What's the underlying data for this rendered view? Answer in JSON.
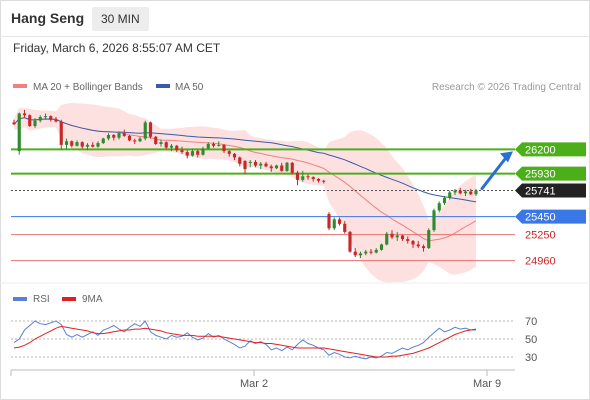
{
  "header": {
    "title": "Hang Seng",
    "timeframe": "30 MIN",
    "datetime": "Friday, March 6, 2026 8:55:07 AM CET"
  },
  "legend": {
    "ma20": "MA 20 + Bollinger Bands",
    "ma50": "MA 50",
    "rsi": "RSI",
    "ma9": "9MA"
  },
  "copyright": "Research © 2026 Trading Central",
  "colors": {
    "candle_up": "#2e8b2e",
    "candle_down": "#c62828",
    "ma20": "#f08080",
    "ma50": "#3a5ca8",
    "bollinger_fill": "#fde0e0",
    "resistance": "#4caf1a",
    "support_blue": "#3b78e7",
    "support_red": "#e57373",
    "rsi": "#5b7fd6",
    "rsi_ma": "#e02020",
    "arrow": "#2a6fd6"
  },
  "chart_data": [
    {
      "type": "candlestick",
      "x_ticks": [
        "Mar 2",
        "Mar 9"
      ],
      "price_levels": [
        {
          "value": 26200,
          "label": "26200",
          "kind": "resistance"
        },
        {
          "value": 25930,
          "label": "25930",
          "kind": "resistance"
        },
        {
          "value": 25741,
          "label": "25741",
          "kind": "last"
        },
        {
          "value": 25450,
          "label": "25450",
          "kind": "support-pivot"
        },
        {
          "value": 25250,
          "label": "25250",
          "kind": "support"
        },
        {
          "value": 24960,
          "label": "24960",
          "kind": "support"
        }
      ],
      "forecast": "up",
      "candles": [
        [
          26500,
          26530,
          26470,
          26480
        ],
        [
          26180,
          26610,
          26140,
          26600
        ],
        [
          26600,
          26640,
          26560,
          26580
        ],
        [
          26580,
          26590,
          26450,
          26460
        ],
        [
          26460,
          26550,
          26440,
          26520
        ],
        [
          26520,
          26580,
          26500,
          26560
        ],
        [
          26560,
          26600,
          26530,
          26570
        ],
        [
          26570,
          26580,
          26510,
          26530
        ],
        [
          26530,
          26560,
          26500,
          26510
        ],
        [
          26510,
          26530,
          26200,
          26250
        ],
        [
          26250,
          26320,
          26200,
          26290
        ],
        [
          26290,
          26300,
          26220,
          26240
        ],
        [
          26240,
          26300,
          26230,
          26280
        ],
        [
          26280,
          26290,
          26210,
          26230
        ],
        [
          26230,
          26270,
          26190,
          26250
        ],
        [
          26250,
          26280,
          26220,
          26230
        ],
        [
          26230,
          26290,
          26220,
          26270
        ],
        [
          26270,
          26330,
          26260,
          26320
        ],
        [
          26320,
          26380,
          26300,
          26360
        ],
        [
          26360,
          26370,
          26300,
          26330
        ],
        [
          26330,
          26400,
          26310,
          26380
        ],
        [
          26380,
          26420,
          26340,
          26350
        ],
        [
          26350,
          26360,
          26290,
          26300
        ],
        [
          26300,
          26320,
          26260,
          26290
        ],
        [
          26290,
          26340,
          26280,
          26320
        ],
        [
          26320,
          26520,
          26300,
          26500
        ],
        [
          26500,
          26510,
          26320,
          26340
        ],
        [
          26340,
          26350,
          26250,
          26260
        ],
        [
          26260,
          26310,
          26230,
          26280
        ],
        [
          26280,
          26290,
          26200,
          26220
        ],
        [
          26220,
          26260,
          26180,
          26240
        ],
        [
          26240,
          26250,
          26170,
          26190
        ],
        [
          26190,
          26230,
          26150,
          26170
        ],
        [
          26170,
          26190,
          26100,
          26130
        ],
        [
          26130,
          26210,
          26120,
          26180
        ],
        [
          26180,
          26200,
          26110,
          26140
        ],
        [
          26140,
          26230,
          26130,
          26210
        ],
        [
          26210,
          26280,
          26200,
          26260
        ],
        [
          26260,
          26280,
          26220,
          26240
        ],
        [
          26240,
          26290,
          26230,
          26250
        ],
        [
          26250,
          26260,
          26160,
          26180
        ],
        [
          26180,
          26190,
          26120,
          26150
        ],
        [
          26150,
          26160,
          26080,
          26110
        ],
        [
          26110,
          26120,
          26010,
          26040
        ],
        [
          26070,
          26080,
          25920,
          25980
        ],
        [
          26050,
          26080,
          26000,
          26060
        ],
        [
          26060,
          26080,
          26000,
          26020
        ],
        [
          26020,
          26060,
          25980,
          26040
        ],
        [
          26040,
          26060,
          26000,
          26010
        ],
        [
          26010,
          26030,
          25950,
          25990
        ],
        [
          25990,
          26030,
          25980,
          26020
        ],
        [
          26020,
          26050,
          25950,
          25960
        ],
        [
          25960,
          26060,
          25950,
          26050
        ],
        [
          26050,
          26060,
          25920,
          25940
        ],
        [
          25940,
          25960,
          25800,
          25860
        ],
        [
          25860,
          25960,
          25840,
          25900
        ],
        [
          25900,
          25920,
          25860,
          25890
        ],
        [
          25890,
          25900,
          25840,
          25870
        ],
        [
          25870,
          25880,
          25830,
          25850
        ],
        [
          25850,
          25860,
          25820,
          25840
        ],
        [
          25480,
          25500,
          25300,
          25320
        ],
        [
          25320,
          25440,
          25300,
          25420
        ],
        [
          25420,
          25440,
          25350,
          25370
        ],
        [
          25370,
          25400,
          25260,
          25280
        ],
        [
          25280,
          25290,
          25050,
          25060
        ],
        [
          25060,
          25100,
          25000,
          25020
        ],
        [
          25020,
          25060,
          24990,
          25040
        ],
        [
          25040,
          25080,
          25020,
          25060
        ],
        [
          25060,
          25090,
          25030,
          25050
        ],
        [
          25050,
          25100,
          25040,
          25080
        ],
        [
          25080,
          25150,
          25070,
          25140
        ],
        [
          25140,
          25280,
          25130,
          25260
        ],
        [
          25260,
          25300,
          25200,
          25220
        ],
        [
          25220,
          25280,
          25180,
          25240
        ],
        [
          25240,
          25250,
          25180,
          25200
        ],
        [
          25200,
          25230,
          25150,
          25180
        ],
        [
          25180,
          25190,
          25100,
          25140
        ],
        [
          25140,
          25180,
          25100,
          25120
        ],
        [
          25120,
          25140,
          25060,
          25100
        ],
        [
          25100,
          25320,
          25090,
          25300
        ],
        [
          25300,
          25540,
          25280,
          25520
        ],
        [
          25520,
          25620,
          25500,
          25600
        ],
        [
          25600,
          25680,
          25580,
          25660
        ],
        [
          25660,
          25740,
          25640,
          25720
        ],
        [
          25720,
          25760,
          25690,
          25740
        ],
        [
          25740,
          25770,
          25700,
          25710
        ],
        [
          25710,
          25750,
          25680,
          25730
        ],
        [
          25730,
          25760,
          25690,
          25700
        ],
        [
          25700,
          25760,
          25680,
          25741
        ]
      ]
    },
    {
      "type": "line",
      "name": "RSI",
      "yticks": [
        70,
        50,
        30
      ],
      "ylim": [
        20,
        80
      ],
      "series": [
        {
          "name": "RSI",
          "values": [
            46,
            50,
            60,
            65,
            70,
            67,
            66,
            68,
            70,
            66,
            55,
            52,
            55,
            52,
            55,
            58,
            54,
            60,
            62,
            65,
            61,
            58,
            63,
            67,
            64,
            70,
            58,
            54,
            52,
            50,
            54,
            52,
            53,
            57,
            52,
            49,
            51,
            56,
            52,
            54,
            50,
            47,
            44,
            40,
            42,
            48,
            45,
            47,
            44,
            38,
            40,
            37,
            41,
            38,
            44,
            49,
            45,
            43,
            40,
            38,
            32,
            35,
            33,
            30,
            29,
            31,
            29,
            28,
            30,
            29,
            31,
            35,
            34,
            37,
            40,
            38,
            41,
            43,
            46,
            52,
            57,
            62,
            58,
            60,
            63,
            61,
            62,
            60,
            60
          ]
        },
        {
          "name": "9MA",
          "values": [
            40,
            41,
            43,
            46,
            50,
            53,
            56,
            59,
            62,
            64,
            63,
            62,
            61,
            60,
            59,
            57,
            56,
            56,
            57,
            58,
            59,
            60,
            60,
            61,
            61,
            62,
            61,
            60,
            59,
            57,
            56,
            55,
            54,
            54,
            54,
            53,
            53,
            53,
            53,
            53,
            52,
            51,
            50,
            49,
            48,
            47,
            46,
            46,
            45,
            45,
            44,
            43,
            42,
            41,
            40,
            40,
            40,
            40,
            40,
            40,
            39,
            38,
            37,
            36,
            35,
            34,
            33,
            32,
            31,
            30,
            30,
            30,
            31,
            31,
            32,
            33,
            34,
            36,
            38,
            40,
            43,
            46,
            49,
            52,
            55,
            57,
            59,
            60,
            61
          ]
        }
      ]
    }
  ]
}
